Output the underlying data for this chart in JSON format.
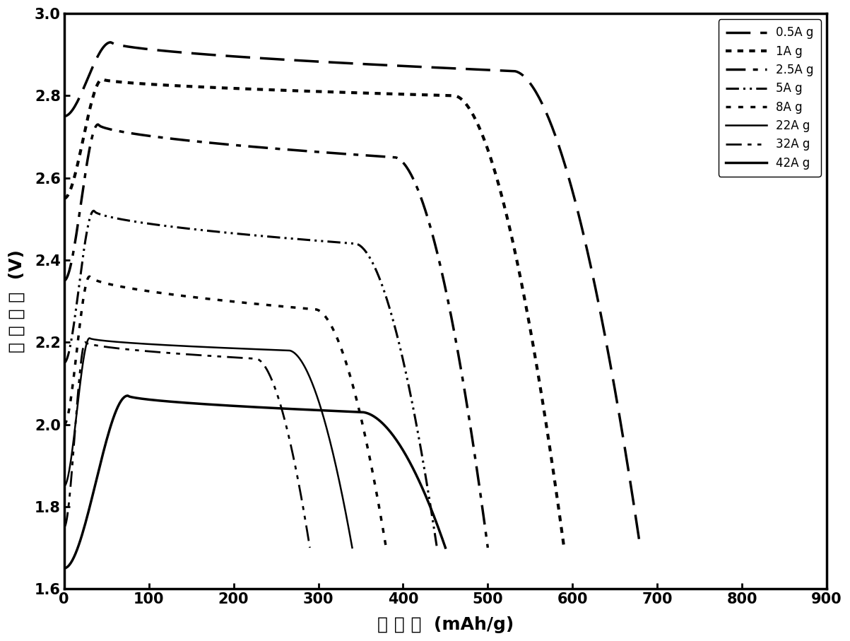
{
  "xlabel": "比 容 量  (mAh/g)",
  "ylabel": "电 池 电 压  (V)",
  "xlim": [
    0,
    900
  ],
  "ylim": [
    1.6,
    3.0
  ],
  "xticks": [
    0,
    100,
    200,
    300,
    400,
    500,
    600,
    700,
    800,
    900
  ],
  "yticks": [
    1.6,
    1.8,
    2.0,
    2.2,
    2.4,
    2.6,
    2.8,
    3.0
  ],
  "curves": [
    {
      "label": "0.5A g",
      "ls_type": "longdash",
      "lw": 2.5,
      "init_v": 2.75,
      "peak_x": 55,
      "peak_v": 2.93,
      "plateau_v": 2.86,
      "end_x": 680,
      "cutoff": 1.7
    },
    {
      "label": "1A g",
      "ls_type": "dot",
      "lw": 3.0,
      "init_v": 2.55,
      "peak_x": 45,
      "peak_v": 2.84,
      "plateau_v": 2.8,
      "end_x": 590,
      "cutoff": 1.7
    },
    {
      "label": "2.5A g",
      "ls_type": "dashdot",
      "lw": 2.5,
      "init_v": 2.35,
      "peak_x": 40,
      "peak_v": 2.73,
      "plateau_v": 2.65,
      "end_x": 500,
      "cutoff": 1.7
    },
    {
      "label": "5A g",
      "ls_type": "dashdotdot",
      "lw": 2.2,
      "init_v": 2.15,
      "peak_x": 35,
      "peak_v": 2.52,
      "plateau_v": 2.44,
      "end_x": 440,
      "cutoff": 1.7
    },
    {
      "label": "8A g",
      "ls_type": "dot2",
      "lw": 2.5,
      "init_v": 2.0,
      "peak_x": 30,
      "peak_v": 2.36,
      "plateau_v": 2.28,
      "end_x": 380,
      "cutoff": 1.7
    },
    {
      "label": "22A g",
      "ls_type": "solid",
      "lw": 1.8,
      "init_v": 1.85,
      "peak_x": 30,
      "peak_v": 2.21,
      "plateau_v": 2.18,
      "end_x": 340,
      "cutoff": 1.7
    },
    {
      "label": "32A g",
      "ls_type": "dashdot2",
      "lw": 2.0,
      "init_v": 1.75,
      "peak_x": 25,
      "peak_v": 2.2,
      "plateau_v": 2.16,
      "end_x": 290,
      "cutoff": 1.7
    },
    {
      "label": "42A g",
      "ls_type": "solid2",
      "lw": 2.5,
      "init_v": 1.65,
      "peak_x": 75,
      "peak_v": 2.07,
      "plateau_v": 2.03,
      "end_x": 450,
      "cutoff": 1.7
    }
  ],
  "axis_fontsize": 18,
  "tick_fontsize": 15,
  "legend_fontsize": 12
}
